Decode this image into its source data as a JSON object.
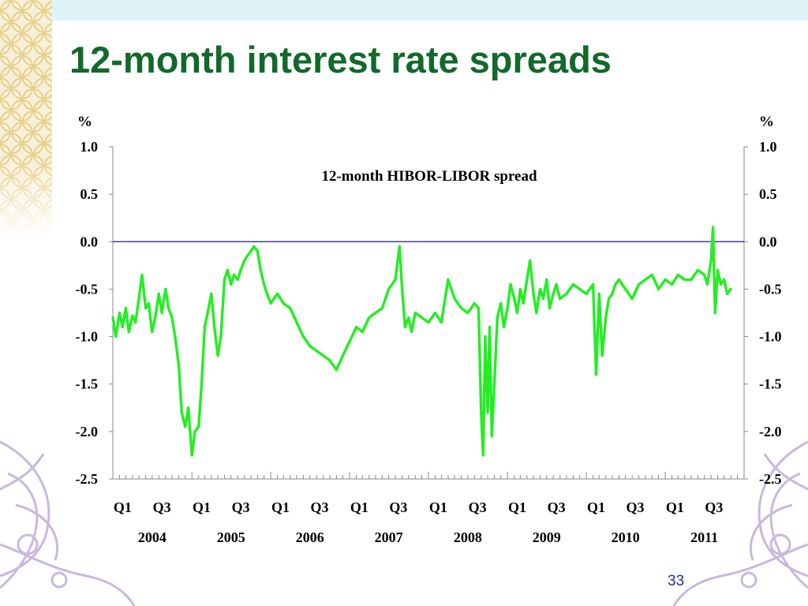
{
  "slide": {
    "title": "12-month interest rate spreads",
    "page_number": "33",
    "colors": {
      "title": "#12692a",
      "page_number": "#1f2fa8",
      "decoration": "#c9b8dd",
      "top_stripe": "#dff4f9"
    }
  },
  "chart_data": {
    "type": "line",
    "title": "",
    "annotation": "12-month HIBOR-LIBOR spread",
    "xlabel": "",
    "ylabel": "%",
    "ylabel_right": "%",
    "ylim": [
      -2.5,
      1.0
    ],
    "yticks": [
      1.0,
      0.5,
      0.0,
      -0.5,
      -1.0,
      -1.5,
      -2.0,
      -2.5
    ],
    "ytick_labels": [
      "1.0",
      "0.5",
      "0.0",
      "-0.5",
      "-1.0",
      "-1.5",
      "-2.0",
      "-2.5"
    ],
    "xlim": [
      "2004-01-01",
      "2012-01-01"
    ],
    "x_quarter_labels": [
      "Q1",
      "Q3",
      "Q1",
      "Q3",
      "Q1",
      "Q3",
      "Q1",
      "Q3",
      "Q1",
      "Q3",
      "Q1",
      "Q3",
      "Q1",
      "Q3",
      "Q1",
      "Q3"
    ],
    "x_year_labels": [
      "2004",
      "2005",
      "2006",
      "2007",
      "2008",
      "2009",
      "2010",
      "2011"
    ],
    "reference_line": 0.0,
    "grid": false,
    "legend": "none",
    "series": [
      {
        "color": "#22ee22",
        "x": [
          "2004-01-01",
          "2004-01-15",
          "2004-02-01",
          "2004-02-15",
          "2004-03-01",
          "2004-03-15",
          "2004-04-01",
          "2004-04-15",
          "2004-05-01",
          "2004-05-15",
          "2004-06-01",
          "2004-06-15",
          "2004-07-01",
          "2004-07-15",
          "2004-08-01",
          "2004-08-15",
          "2004-09-01",
          "2004-09-15",
          "2004-10-01",
          "2004-10-15",
          "2004-11-01",
          "2004-11-15",
          "2004-12-01",
          "2004-12-15",
          "2005-01-01",
          "2005-01-15",
          "2005-02-01",
          "2005-02-15",
          "2005-03-01",
          "2005-03-15",
          "2005-04-01",
          "2005-04-15",
          "2005-05-01",
          "2005-05-15",
          "2005-06-01",
          "2005-06-15",
          "2005-07-01",
          "2005-07-15",
          "2005-08-01",
          "2005-08-15",
          "2005-09-01",
          "2005-09-15",
          "2005-10-01",
          "2005-10-15",
          "2005-11-01",
          "2005-11-15",
          "2005-12-01",
          "2005-12-15",
          "2006-01-01",
          "2006-01-15",
          "2006-02-01",
          "2006-03-01",
          "2006-04-01",
          "2006-05-01",
          "2006-06-01",
          "2006-07-01",
          "2006-08-01",
          "2006-09-01",
          "2006-10-01",
          "2006-11-01",
          "2006-12-01",
          "2007-01-01",
          "2007-02-01",
          "2007-03-01",
          "2007-04-01",
          "2007-05-01",
          "2007-06-01",
          "2007-07-01",
          "2007-08-01",
          "2007-08-20",
          "2007-09-01",
          "2007-09-15",
          "2007-10-01",
          "2007-10-15",
          "2007-11-01",
          "2007-12-01",
          "2008-01-01",
          "2008-02-01",
          "2008-03-01",
          "2008-04-01",
          "2008-05-01",
          "2008-06-01",
          "2008-07-01",
          "2008-08-01",
          "2008-08-20",
          "2008-09-01",
          "2008-09-10",
          "2008-09-20",
          "2008-10-01",
          "2008-10-10",
          "2008-10-20",
          "2008-11-01",
          "2008-11-15",
          "2008-12-01",
          "2008-12-15",
          "2009-01-01",
          "2009-01-15",
          "2009-02-01",
          "2009-02-15",
          "2009-03-01",
          "2009-03-15",
          "2009-04-01",
          "2009-04-15",
          "2009-05-01",
          "2009-05-15",
          "2009-06-01",
          "2009-06-15",
          "2009-07-01",
          "2009-07-15",
          "2009-08-01",
          "2009-08-15",
          "2009-09-01",
          "2009-10-01",
          "2009-11-01",
          "2009-12-01",
          "2010-01-01",
          "2010-02-01",
          "2010-02-15",
          "2010-03-01",
          "2010-03-15",
          "2010-04-01",
          "2010-04-15",
          "2010-05-01",
          "2010-05-15",
          "2010-06-01",
          "2010-07-01",
          "2010-08-01",
          "2010-09-01",
          "2010-10-01",
          "2010-11-01",
          "2010-12-01",
          "2011-01-01",
          "2011-02-01",
          "2011-03-01",
          "2011-04-01",
          "2011-05-01",
          "2011-06-01",
          "2011-07-01",
          "2011-07-15",
          "2011-08-01",
          "2011-08-10",
          "2011-08-20",
          "2011-09-01",
          "2011-09-15",
          "2011-10-01",
          "2011-10-15",
          "2011-11-01"
        ],
        "y": [
          -0.8,
          -1.0,
          -0.75,
          -0.9,
          -0.7,
          -0.95,
          -0.78,
          -0.85,
          -0.6,
          -0.35,
          -0.7,
          -0.65,
          -0.95,
          -0.8,
          -0.55,
          -0.75,
          -0.5,
          -0.7,
          -0.8,
          -1.0,
          -1.3,
          -1.8,
          -1.95,
          -1.75,
          -2.25,
          -2.0,
          -1.95,
          -1.5,
          -0.9,
          -0.75,
          -0.55,
          -0.9,
          -1.2,
          -1.0,
          -0.4,
          -0.3,
          -0.45,
          -0.35,
          -0.4,
          -0.3,
          -0.2,
          -0.15,
          -0.1,
          -0.05,
          -0.1,
          -0.3,
          -0.45,
          -0.55,
          -0.65,
          -0.6,
          -0.55,
          -0.65,
          -0.7,
          -0.85,
          -1.0,
          -1.1,
          -1.15,
          -1.2,
          -1.25,
          -1.35,
          -1.2,
          -1.05,
          -0.9,
          -0.95,
          -0.8,
          -0.75,
          -0.7,
          -0.5,
          -0.4,
          -0.05,
          -0.5,
          -0.9,
          -0.8,
          -0.95,
          -0.75,
          -0.8,
          -0.85,
          -0.75,
          -0.85,
          -0.4,
          -0.6,
          -0.7,
          -0.75,
          -0.65,
          -0.7,
          -1.8,
          -2.25,
          -1.0,
          -1.8,
          -0.9,
          -2.05,
          -1.5,
          -0.8,
          -0.65,
          -0.9,
          -0.7,
          -0.45,
          -0.6,
          -0.75,
          -0.5,
          -0.65,
          -0.4,
          -0.2,
          -0.55,
          -0.75,
          -0.5,
          -0.6,
          -0.4,
          -0.7,
          -0.55,
          -0.45,
          -0.6,
          -0.55,
          -0.45,
          -0.5,
          -0.55,
          -0.45,
          -1.4,
          -0.55,
          -1.2,
          -0.8,
          -0.6,
          -0.55,
          -0.45,
          -0.4,
          -0.5,
          -0.6,
          -0.45,
          -0.4,
          -0.35,
          -0.5,
          -0.4,
          -0.45,
          -0.35,
          -0.4,
          -0.4,
          -0.3,
          -0.35,
          -0.45,
          -0.2,
          0.15,
          -0.75,
          -0.3,
          -0.45,
          -0.4,
          -0.55,
          -0.5
        ]
      }
    ]
  }
}
